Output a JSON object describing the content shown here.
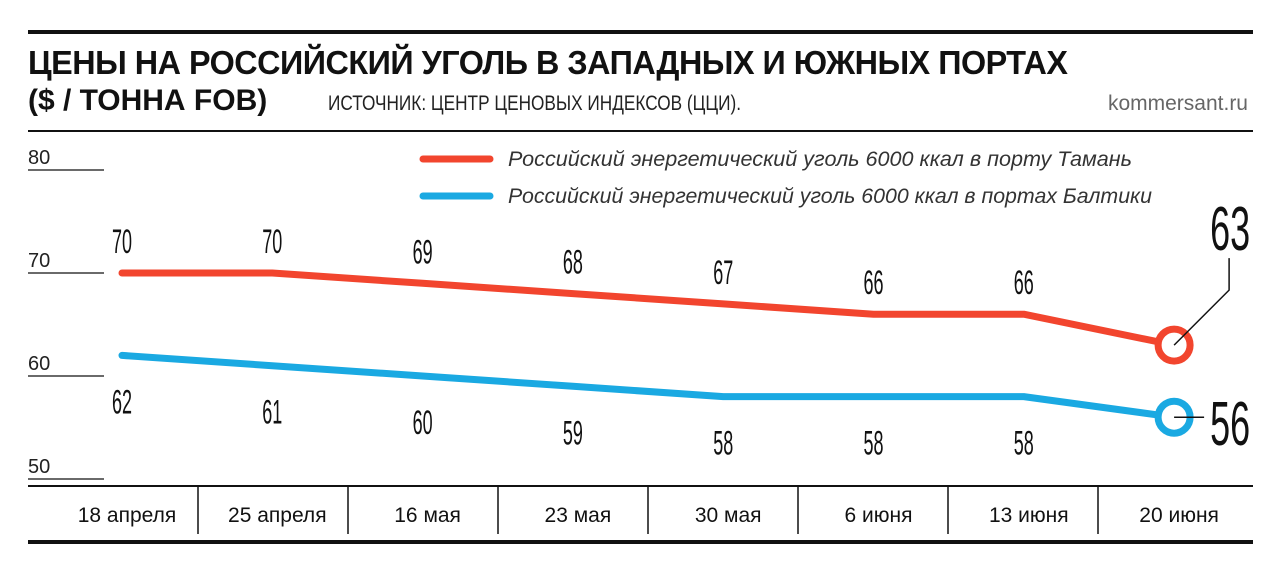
{
  "header": {
    "title": "ЦЕНЫ НА РОССИЙСКИЙ УГОЛЬ В ЗАПАДНЫХ И ЮЖНЫХ ПОРТАХ",
    "units": "($ / ТОННА FOB)",
    "source": "ИСТОЧНИК: ЦЕНТР ЦЕНОВЫХ ИНДЕКСОВ (ЦЦИ).",
    "site": "kommersant.ru"
  },
  "colors": {
    "red": "#f2452e",
    "blue": "#1aa9e2"
  },
  "chart_data": {
    "type": "line",
    "title": "ЦЕНЫ НА РОССИЙСКИЙ УГОЛЬ В ЗАПАДНЫХ И ЮЖНЫХ ПОРТАХ",
    "ylabel": "$ / тонна FOB",
    "ylim": [
      50,
      80
    ],
    "yticks": [
      80,
      70,
      60,
      50
    ],
    "categories": [
      "18 апреля",
      "25 апреля",
      "16 мая",
      "23 мая",
      "30 мая",
      "6 июня",
      "13 июня",
      "20 июня"
    ],
    "legend_position": "top-right",
    "series": [
      {
        "name": "Российский энергетический уголь 6000 ккал в порту Тамань",
        "color": "#f2452e",
        "values": [
          70,
          70,
          69,
          68,
          67,
          66,
          66,
          63
        ]
      },
      {
        "name": "Российский энергетический уголь 6000 ккал в портах Балтики",
        "color": "#1aa9e2",
        "values": [
          62,
          61,
          60,
          59,
          58,
          58,
          58,
          56
        ]
      }
    ]
  }
}
